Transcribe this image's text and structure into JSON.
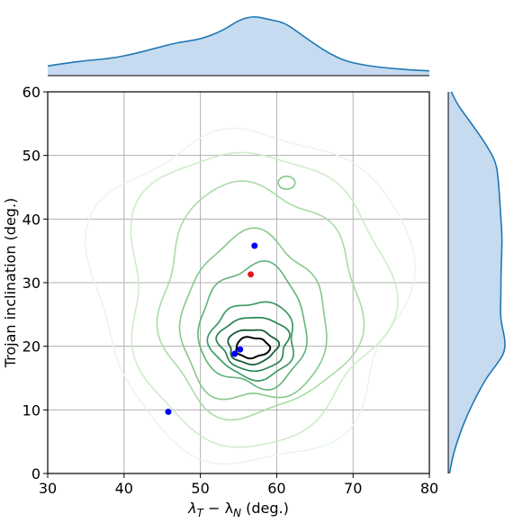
{
  "chart_data": {
    "type": "scatter",
    "xlabel": "λT − λN (deg.)",
    "xlabel_main": "λ",
    "xlabel_sub1": "T",
    "xlabel_minus": " − λ",
    "xlabel_sub2": "N",
    "xlabel_unit": " (deg.)",
    "ylabel": "Trojan inclination (deg.)",
    "xlim": [
      30,
      80
    ],
    "ylim": [
      0,
      60
    ],
    "xticks": [
      "30",
      "40",
      "50",
      "60",
      "70",
      "80"
    ],
    "yticks": [
      "0",
      "10",
      "20",
      "30",
      "40",
      "50",
      "60"
    ],
    "grid": true,
    "colors": {
      "kde_line": "#1f77b4",
      "kde_fill": "#c6dbef",
      "contour_light": "#e5f5e0",
      "contour_dark": "#000000",
      "red_point": "#e41a1c",
      "blue_point": "#0000ff",
      "grid": "#b0b0b0"
    },
    "points": [
      {
        "x": 56.6,
        "y": 31.3,
        "color": "red"
      },
      {
        "x": 57.1,
        "y": 35.8,
        "color": "blue"
      },
      {
        "x": 55.2,
        "y": 19.5,
        "color": "blue"
      },
      {
        "x": 54.5,
        "y": 18.8,
        "color": "blue"
      },
      {
        "x": 45.8,
        "y": 9.7,
        "color": "blue"
      }
    ],
    "contours": [
      {
        "level": 1,
        "cx": 56.5,
        "cy": 28.5,
        "rx": 20.5,
        "ry": 26.0
      },
      {
        "level": 2,
        "cx": 57.0,
        "cy": 28.0,
        "rx": 17.0,
        "ry": 23.0
      },
      {
        "level": 3,
        "cx": 57.5,
        "cy": 27.0,
        "rx": 13.0,
        "ry": 18.0
      },
      {
        "level": 4,
        "cx": 57.0,
        "cy": 24.0,
        "rx": 9.5,
        "ry": 13.0
      },
      {
        "level": 5,
        "cx": 57.0,
        "cy": 23.0,
        "rx": 7.0,
        "ry": 9.5
      },
      {
        "level": 6,
        "cx": 57.0,
        "cy": 21.0,
        "rx": 5.5,
        "ry": 6.0
      },
      {
        "level": 7,
        "cx": 57.0,
        "cy": 20.5,
        "rx": 4.5,
        "ry": 4.2
      },
      {
        "level": 8,
        "cx": 56.8,
        "cy": 20.0,
        "rx": 3.2,
        "ry": 2.7
      },
      {
        "level": 9,
        "cx": 56.8,
        "cy": 19.8,
        "rx": 2.2,
        "ry": 1.6
      }
    ],
    "small_contour": {
      "cx": 61.3,
      "cy": 45.7,
      "rx": 1.1,
      "ry": 1.0
    },
    "x_marginal": {
      "x": [
        30,
        32,
        35,
        38,
        41,
        44,
        47,
        50,
        53,
        55,
        57,
        59,
        61,
        63,
        65,
        67,
        69,
        72,
        75,
        78,
        80
      ],
      "density": [
        0.16,
        0.2,
        0.25,
        0.28,
        0.35,
        0.45,
        0.55,
        0.6,
        0.75,
        0.92,
        0.99,
        0.93,
        0.88,
        0.7,
        0.52,
        0.36,
        0.24,
        0.16,
        0.12,
        0.09,
        0.08
      ]
    },
    "y_marginal": {
      "y": [
        0,
        3,
        6,
        9,
        12,
        15,
        17,
        19,
        21,
        23,
        25,
        28,
        31,
        34,
        37,
        40,
        43,
        46,
        49,
        52,
        55,
        58,
        60
      ],
      "density": [
        0.02,
        0.08,
        0.18,
        0.3,
        0.45,
        0.62,
        0.78,
        0.92,
        0.93,
        0.88,
        0.85,
        0.86,
        0.86,
        0.87,
        0.88,
        0.86,
        0.84,
        0.82,
        0.78,
        0.6,
        0.38,
        0.15,
        0.05
      ]
    }
  }
}
